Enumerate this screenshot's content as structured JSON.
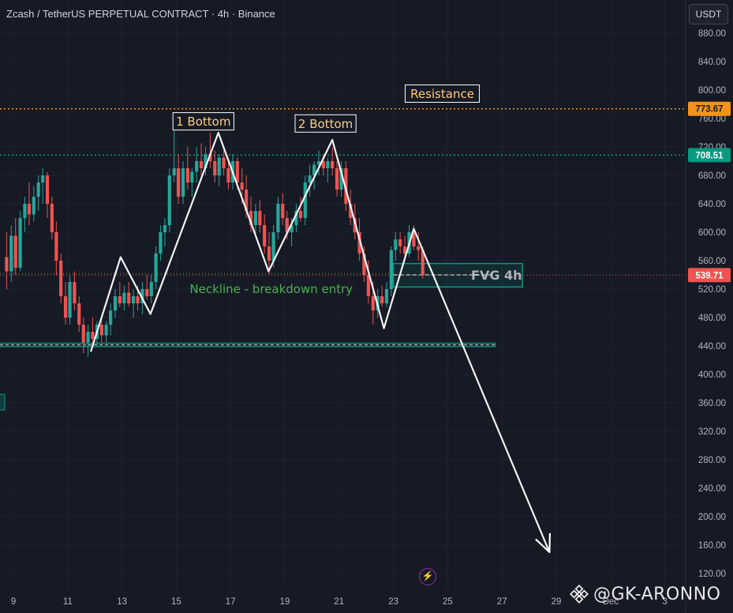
{
  "header": {
    "title": "Zcash / TetherUS PERPETUAL CONTRACT · 4h · Binance",
    "currency_button": "USDT"
  },
  "colors": {
    "background": "#161a25",
    "grid": "#1f2330",
    "axis_text": "#b2b5be",
    "bull": "#26a69a",
    "bear": "#ef5350",
    "resistance": "#f7931a",
    "support": "#089981",
    "neckline": "#4caf50",
    "pattern": "#ffffff"
  },
  "watermark": {
    "text": "@GK-ARONNO",
    "logo_icon": "binance-logo-icon"
  },
  "flash_icon": "lightning-icon",
  "chart_data": {
    "type": "candlestick",
    "title": "Zcash / TetherUS PERPETUAL CONTRACT · 4h · Binance",
    "ylim": [
      100,
      900
    ],
    "y_ticks": [
      "880.00",
      "840.00",
      "800.00",
      "760.00",
      "720.00",
      "680.00",
      "640.00",
      "600.00",
      "560.00",
      "520.00",
      "480.00",
      "440.00",
      "400.00",
      "360.00",
      "320.00",
      "280.00",
      "240.00",
      "200.00",
      "160.00",
      "120.00"
    ],
    "y_tick_values": [
      880,
      840,
      800,
      760,
      720,
      680,
      640,
      600,
      560,
      520,
      480,
      440,
      400,
      360,
      320,
      280,
      240,
      200,
      160,
      120
    ],
    "x_tick_labels": [
      "9",
      "11",
      "13",
      "15",
      "17",
      "19",
      "21",
      "23",
      "25",
      "27",
      "29",
      "Dec",
      "3"
    ],
    "x_tick_days": [
      9,
      11,
      13,
      15,
      17,
      19,
      21,
      23,
      25,
      27,
      29,
      31,
      33
    ],
    "xlim": [
      8.75,
      33.0
    ],
    "price_badges": [
      {
        "label": "773.67",
        "value": 773.67,
        "style": "resistance"
      },
      {
        "label": "708.51",
        "value": 708.51,
        "style": "support"
      },
      {
        "label": "539.71",
        "value": 539.71,
        "style": "current"
      }
    ],
    "candles": [
      {
        "day": 8.75,
        "o": 565,
        "h": 600,
        "l": 520,
        "c": 545
      },
      {
        "day": 8.92,
        "o": 545,
        "h": 610,
        "l": 530,
        "c": 595
      },
      {
        "day": 9.08,
        "o": 595,
        "h": 620,
        "l": 540,
        "c": 550
      },
      {
        "day": 9.25,
        "o": 550,
        "h": 630,
        "l": 545,
        "c": 620
      },
      {
        "day": 9.42,
        "o": 620,
        "h": 650,
        "l": 600,
        "c": 640
      },
      {
        "day": 9.58,
        "o": 640,
        "h": 670,
        "l": 610,
        "c": 625
      },
      {
        "day": 9.75,
        "o": 625,
        "h": 665,
        "l": 615,
        "c": 650
      },
      {
        "day": 9.92,
        "o": 650,
        "h": 680,
        "l": 630,
        "c": 670
      },
      {
        "day": 10.08,
        "o": 670,
        "h": 690,
        "l": 640,
        "c": 680
      },
      {
        "day": 10.25,
        "o": 680,
        "h": 685,
        "l": 620,
        "c": 640
      },
      {
        "day": 10.42,
        "o": 640,
        "h": 650,
        "l": 590,
        "c": 600
      },
      {
        "day": 10.58,
        "o": 600,
        "h": 615,
        "l": 540,
        "c": 560
      },
      {
        "day": 10.75,
        "o": 560,
        "h": 570,
        "l": 500,
        "c": 510
      },
      {
        "day": 10.92,
        "o": 510,
        "h": 530,
        "l": 470,
        "c": 480
      },
      {
        "day": 11.08,
        "o": 480,
        "h": 540,
        "l": 470,
        "c": 530
      },
      {
        "day": 11.25,
        "o": 530,
        "h": 545,
        "l": 490,
        "c": 500
      },
      {
        "day": 11.42,
        "o": 500,
        "h": 510,
        "l": 460,
        "c": 470
      },
      {
        "day": 11.58,
        "o": 470,
        "h": 480,
        "l": 430,
        "c": 445
      },
      {
        "day": 11.75,
        "o": 445,
        "h": 470,
        "l": 425,
        "c": 460
      },
      {
        "day": 11.92,
        "o": 460,
        "h": 480,
        "l": 440,
        "c": 450
      },
      {
        "day": 12.08,
        "o": 450,
        "h": 475,
        "l": 440,
        "c": 470
      },
      {
        "day": 12.25,
        "o": 470,
        "h": 480,
        "l": 445,
        "c": 455
      },
      {
        "day": 12.42,
        "o": 455,
        "h": 475,
        "l": 445,
        "c": 470
      },
      {
        "day": 12.58,
        "o": 470,
        "h": 500,
        "l": 455,
        "c": 490
      },
      {
        "day": 12.75,
        "o": 490,
        "h": 520,
        "l": 480,
        "c": 510
      },
      {
        "day": 12.92,
        "o": 510,
        "h": 530,
        "l": 495,
        "c": 500
      },
      {
        "day": 13.08,
        "o": 500,
        "h": 525,
        "l": 490,
        "c": 515
      },
      {
        "day": 13.25,
        "o": 515,
        "h": 530,
        "l": 495,
        "c": 500
      },
      {
        "day": 13.42,
        "o": 500,
        "h": 520,
        "l": 480,
        "c": 510
      },
      {
        "day": 13.58,
        "o": 510,
        "h": 525,
        "l": 490,
        "c": 500
      },
      {
        "day": 13.75,
        "o": 500,
        "h": 530,
        "l": 485,
        "c": 520
      },
      {
        "day": 13.92,
        "o": 520,
        "h": 540,
        "l": 505,
        "c": 510
      },
      {
        "day": 14.08,
        "o": 510,
        "h": 540,
        "l": 500,
        "c": 530
      },
      {
        "day": 14.25,
        "o": 530,
        "h": 580,
        "l": 520,
        "c": 570
      },
      {
        "day": 14.42,
        "o": 570,
        "h": 610,
        "l": 560,
        "c": 600
      },
      {
        "day": 14.58,
        "o": 600,
        "h": 620,
        "l": 580,
        "c": 610
      },
      {
        "day": 14.75,
        "o": 610,
        "h": 690,
        "l": 600,
        "c": 680
      },
      {
        "day": 14.92,
        "o": 680,
        "h": 760,
        "l": 670,
        "c": 690
      },
      {
        "day": 15.08,
        "o": 690,
        "h": 710,
        "l": 640,
        "c": 650
      },
      {
        "day": 15.25,
        "o": 650,
        "h": 700,
        "l": 640,
        "c": 690
      },
      {
        "day": 15.42,
        "o": 690,
        "h": 720,
        "l": 660,
        "c": 670
      },
      {
        "day": 15.58,
        "o": 670,
        "h": 690,
        "l": 650,
        "c": 685
      },
      {
        "day": 15.75,
        "o": 685,
        "h": 720,
        "l": 670,
        "c": 700
      },
      {
        "day": 15.92,
        "o": 700,
        "h": 725,
        "l": 680,
        "c": 690
      },
      {
        "day": 16.08,
        "o": 690,
        "h": 720,
        "l": 680,
        "c": 710
      },
      {
        "day": 16.25,
        "o": 710,
        "h": 740,
        "l": 690,
        "c": 700
      },
      {
        "day": 16.42,
        "o": 700,
        "h": 715,
        "l": 670,
        "c": 680
      },
      {
        "day": 16.58,
        "o": 680,
        "h": 710,
        "l": 665,
        "c": 705
      },
      {
        "day": 16.75,
        "o": 705,
        "h": 715,
        "l": 680,
        "c": 690
      },
      {
        "day": 16.92,
        "o": 690,
        "h": 700,
        "l": 660,
        "c": 670
      },
      {
        "day": 17.08,
        "o": 670,
        "h": 710,
        "l": 660,
        "c": 700
      },
      {
        "day": 17.25,
        "o": 700,
        "h": 705,
        "l": 660,
        "c": 670
      },
      {
        "day": 17.42,
        "o": 670,
        "h": 690,
        "l": 640,
        "c": 660
      },
      {
        "day": 17.58,
        "o": 660,
        "h": 680,
        "l": 620,
        "c": 630
      },
      {
        "day": 17.75,
        "o": 630,
        "h": 650,
        "l": 600,
        "c": 610
      },
      {
        "day": 17.92,
        "o": 610,
        "h": 640,
        "l": 595,
        "c": 630
      },
      {
        "day": 18.08,
        "o": 630,
        "h": 645,
        "l": 600,
        "c": 610
      },
      {
        "day": 18.25,
        "o": 610,
        "h": 625,
        "l": 570,
        "c": 580
      },
      {
        "day": 18.42,
        "o": 580,
        "h": 600,
        "l": 540,
        "c": 560
      },
      {
        "day": 18.58,
        "o": 560,
        "h": 610,
        "l": 550,
        "c": 600
      },
      {
        "day": 18.75,
        "o": 600,
        "h": 650,
        "l": 590,
        "c": 640
      },
      {
        "day": 18.92,
        "o": 640,
        "h": 655,
        "l": 610,
        "c": 620
      },
      {
        "day": 19.08,
        "o": 620,
        "h": 630,
        "l": 590,
        "c": 600
      },
      {
        "day": 19.25,
        "o": 600,
        "h": 620,
        "l": 580,
        "c": 610
      },
      {
        "day": 19.42,
        "o": 610,
        "h": 640,
        "l": 600,
        "c": 630
      },
      {
        "day": 19.58,
        "o": 630,
        "h": 650,
        "l": 615,
        "c": 620
      },
      {
        "day": 19.75,
        "o": 620,
        "h": 680,
        "l": 610,
        "c": 670
      },
      {
        "day": 19.92,
        "o": 670,
        "h": 695,
        "l": 650,
        "c": 680
      },
      {
        "day": 20.08,
        "o": 680,
        "h": 700,
        "l": 660,
        "c": 695
      },
      {
        "day": 20.25,
        "o": 695,
        "h": 715,
        "l": 680,
        "c": 700
      },
      {
        "day": 20.42,
        "o": 700,
        "h": 710,
        "l": 680,
        "c": 690
      },
      {
        "day": 20.58,
        "o": 690,
        "h": 705,
        "l": 670,
        "c": 700
      },
      {
        "day": 20.75,
        "o": 700,
        "h": 720,
        "l": 680,
        "c": 690
      },
      {
        "day": 20.92,
        "o": 690,
        "h": 700,
        "l": 650,
        "c": 660
      },
      {
        "day": 21.08,
        "o": 660,
        "h": 700,
        "l": 650,
        "c": 690
      },
      {
        "day": 21.25,
        "o": 690,
        "h": 700,
        "l": 630,
        "c": 640
      },
      {
        "day": 21.42,
        "o": 640,
        "h": 660,
        "l": 610,
        "c": 620
      },
      {
        "day": 21.58,
        "o": 620,
        "h": 640,
        "l": 590,
        "c": 600
      },
      {
        "day": 21.75,
        "o": 600,
        "h": 620,
        "l": 560,
        "c": 570
      },
      {
        "day": 21.92,
        "o": 570,
        "h": 580,
        "l": 530,
        "c": 540
      },
      {
        "day": 22.08,
        "o": 540,
        "h": 560,
        "l": 500,
        "c": 510
      },
      {
        "day": 22.25,
        "o": 510,
        "h": 530,
        "l": 470,
        "c": 490
      },
      {
        "day": 22.42,
        "o": 490,
        "h": 520,
        "l": 480,
        "c": 510
      },
      {
        "day": 22.58,
        "o": 510,
        "h": 525,
        "l": 495,
        "c": 500
      },
      {
        "day": 22.75,
        "o": 500,
        "h": 530,
        "l": 495,
        "c": 520
      },
      {
        "day": 22.92,
        "o": 520,
        "h": 580,
        "l": 510,
        "c": 575
      },
      {
        "day": 23.08,
        "o": 575,
        "h": 600,
        "l": 560,
        "c": 590
      },
      {
        "day": 23.25,
        "o": 590,
        "h": 600,
        "l": 570,
        "c": 580
      },
      {
        "day": 23.42,
        "o": 580,
        "h": 595,
        "l": 560,
        "c": 570
      },
      {
        "day": 23.58,
        "o": 570,
        "h": 610,
        "l": 565,
        "c": 600
      },
      {
        "day": 23.75,
        "o": 600,
        "h": 610,
        "l": 575,
        "c": 580
      },
      {
        "day": 23.92,
        "o": 580,
        "h": 600,
        "l": 560,
        "c": 575
      },
      {
        "day": 24.08,
        "o": 575,
        "h": 580,
        "l": 535,
        "c": 540
      }
    ],
    "levels": [
      {
        "name": "resistance-line",
        "value": 773.67,
        "style": "dotted",
        "color": "resistance"
      },
      {
        "name": "support-line",
        "value": 708.51,
        "style": "dotted",
        "color": "support"
      },
      {
        "name": "current-price-line",
        "value": 539.71,
        "style": "dotted",
        "color": "bear"
      }
    ],
    "zones": [
      {
        "name": "fvg-zone",
        "label": "FVG 4h",
        "day_start": 23.0,
        "day_end": 27.75,
        "top": 556,
        "bottom": 523
      },
      {
        "name": "support-zone",
        "label": "",
        "day_start": 8.75,
        "day_end": 26.75,
        "top": 444,
        "bottom": 439
      }
    ],
    "pattern_path": [
      {
        "day": 11.85,
        "value": 432
      },
      {
        "day": 12.95,
        "value": 565
      },
      {
        "day": 14.05,
        "value": 485
      },
      {
        "day": 16.55,
        "value": 740
      },
      {
        "day": 18.4,
        "value": 545
      },
      {
        "day": 20.75,
        "value": 730
      },
      {
        "day": 22.65,
        "value": 465
      },
      {
        "day": 23.75,
        "value": 605
      },
      {
        "day": 28.75,
        "value": 150
      }
    ],
    "annotations": [
      {
        "name": "label-1-bottom",
        "text": "1 Bottom",
        "day": 16.0,
        "value": 756,
        "style": "boxed"
      },
      {
        "name": "label-2-bottom",
        "text": "2 Bottom",
        "day": 20.5,
        "value": 753,
        "style": "boxed"
      },
      {
        "name": "label-resistance",
        "text": "Resistance",
        "day": 24.8,
        "value": 795,
        "style": "boxed-orange"
      },
      {
        "name": "label-neckline",
        "text": "Neckline - breakdown entry",
        "day": 18.5,
        "value": 520,
        "style": "green-text"
      },
      {
        "name": "label-fvg",
        "text": "FVG 4h",
        "day": 26.8,
        "value": 540,
        "style": "zone-label"
      }
    ]
  }
}
